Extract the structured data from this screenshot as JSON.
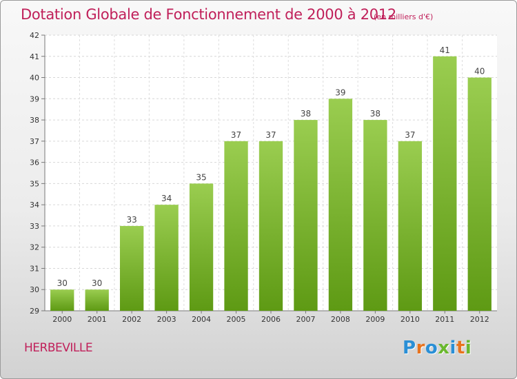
{
  "title": "Dotation Globale de Fonctionnement de 2000 à 2012",
  "subtitle": "(en milliers d'€)",
  "commune": "HERBEVILLE",
  "logo": {
    "text": "Proxiti",
    "colors": [
      "#2a8fd6",
      "#e8731e",
      "#2a8fd6",
      "#6ab82e",
      "#2a8fd6",
      "#e8731e",
      "#6ab82e"
    ]
  },
  "chart_data": {
    "type": "bar",
    "title": "Dotation Globale de Fonctionnement de 2000 à 2012",
    "subtitle": "(en milliers d'€)",
    "categories": [
      "2000",
      "2001",
      "2002",
      "2003",
      "2004",
      "2005",
      "2006",
      "2007",
      "2008",
      "2009",
      "2010",
      "2011",
      "2012"
    ],
    "values": [
      30,
      30,
      33,
      34,
      35,
      37,
      37,
      38,
      39,
      38,
      37,
      41,
      40
    ],
    "ylim": [
      29,
      42
    ],
    "yticks": [
      29,
      30,
      31,
      32,
      33,
      34,
      35,
      36,
      37,
      38,
      39,
      40,
      41,
      42
    ],
    "grid": true,
    "bar_color_top": "#9acd50",
    "bar_color_bottom": "#5e9a14"
  }
}
